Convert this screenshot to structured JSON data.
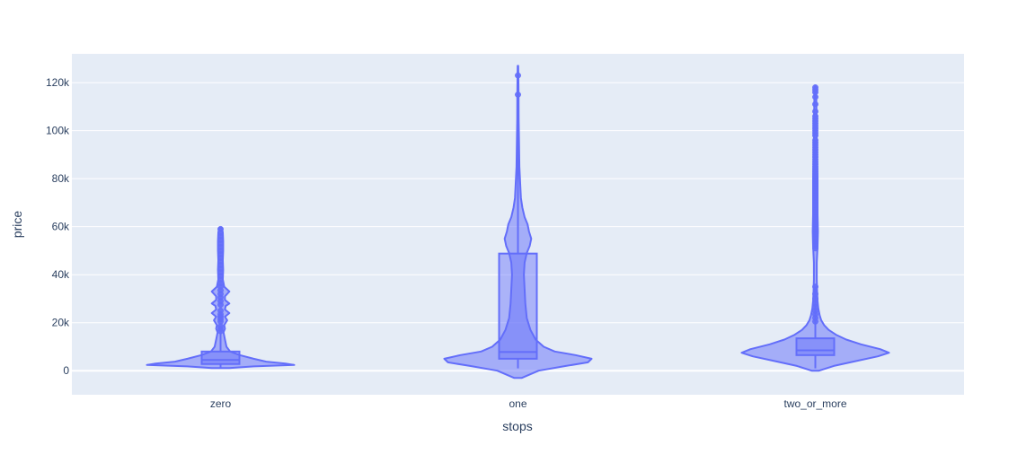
{
  "chart_data": {
    "type": "violin",
    "xlabel": "stops",
    "ylabel": "price",
    "categories": [
      "zero",
      "one",
      "two_or_more"
    ],
    "ylim": [
      -10000,
      132000
    ],
    "yticks": [
      0,
      20000,
      40000,
      60000,
      80000,
      100000,
      120000
    ],
    "ytick_labels": [
      "0",
      "20k",
      "40k",
      "60k",
      "80k",
      "100k",
      "120k"
    ],
    "grid": true,
    "colors": {
      "plot_bg": "#e5ecf6",
      "grid": "#ffffff",
      "series": "#636efa",
      "text": "#2a3f5f"
    },
    "violins": [
      {
        "category": "zero",
        "min": 1100,
        "max": 59500,
        "box": {
          "q1": 2800,
          "median": 4500,
          "q3": 8000,
          "whisker_low": 1100,
          "whisker_high": 16000
        },
        "density": [
          [
            1100,
            0.12
          ],
          [
            1800,
            0.45
          ],
          [
            2400,
            1.0
          ],
          [
            3000,
            0.88
          ],
          [
            3800,
            0.62
          ],
          [
            5000,
            0.45
          ],
          [
            6500,
            0.26
          ],
          [
            8000,
            0.13
          ],
          [
            10000,
            0.08
          ],
          [
            13000,
            0.06
          ],
          [
            16000,
            0.04
          ],
          [
            17500,
            0.06
          ],
          [
            19000,
            0.05
          ],
          [
            21000,
            0.09
          ],
          [
            22500,
            0.06
          ],
          [
            24000,
            0.12
          ],
          [
            25500,
            0.06
          ],
          [
            27000,
            0.07
          ],
          [
            28000,
            0.12
          ],
          [
            29500,
            0.06
          ],
          [
            31000,
            0.06
          ],
          [
            33000,
            0.12
          ],
          [
            35000,
            0.05
          ],
          [
            38000,
            0.03
          ],
          [
            42000,
            0.035
          ],
          [
            46000,
            0.03
          ],
          [
            50000,
            0.035
          ],
          [
            54000,
            0.035
          ],
          [
            57500,
            0.03
          ],
          [
            59500,
            0.02
          ]
        ],
        "outliers": [
          16500,
          17500,
          18500,
          20500,
          21500,
          22500,
          23500,
          25000,
          27500,
          29000,
          30500,
          32000,
          33500,
          35000,
          36500,
          38000,
          39500,
          41000,
          42500,
          44000,
          45500,
          47000,
          48500,
          50000,
          51500,
          53000,
          54500,
          56000,
          57500,
          59000
        ]
      },
      {
        "category": "one",
        "min": -3000,
        "max": 127000,
        "box": {
          "q1": 5000,
          "median": 7800,
          "q3": 48800,
          "whisker_low": 1000,
          "whisker_high": 110000
        },
        "density": [
          [
            -3000,
            0.05
          ],
          [
            0,
            0.28
          ],
          [
            2000,
            0.65
          ],
          [
            3500,
            0.95
          ],
          [
            5000,
            1.0
          ],
          [
            6500,
            0.78
          ],
          [
            8000,
            0.5
          ],
          [
            10000,
            0.35
          ],
          [
            13000,
            0.24
          ],
          [
            17000,
            0.17
          ],
          [
            22000,
            0.12
          ],
          [
            28000,
            0.1
          ],
          [
            34000,
            0.09
          ],
          [
            40000,
            0.08
          ],
          [
            45000,
            0.09
          ],
          [
            49000,
            0.12
          ],
          [
            52000,
            0.16
          ],
          [
            55000,
            0.18
          ],
          [
            58000,
            0.15
          ],
          [
            61000,
            0.13
          ],
          [
            64000,
            0.09
          ],
          [
            68000,
            0.06
          ],
          [
            72000,
            0.04
          ],
          [
            78000,
            0.03
          ],
          [
            85000,
            0.02
          ],
          [
            95000,
            0.015
          ],
          [
            105000,
            0.01
          ],
          [
            115000,
            0.008
          ],
          [
            122000,
            0.006
          ],
          [
            127000,
            0.004
          ]
        ],
        "outliers": [
          115000,
          123000
        ]
      },
      {
        "category": "two_or_more",
        "min": 0,
        "max": 118500,
        "box": {
          "q1": 6500,
          "median": 8500,
          "q3": 13500,
          "whisker_low": 1000,
          "whisker_high": 35000
        },
        "density": [
          [
            0,
            0.05
          ],
          [
            2000,
            0.25
          ],
          [
            4000,
            0.55
          ],
          [
            6000,
            0.85
          ],
          [
            7500,
            1.0
          ],
          [
            9000,
            0.88
          ],
          [
            11000,
            0.62
          ],
          [
            13000,
            0.42
          ],
          [
            15000,
            0.28
          ],
          [
            17000,
            0.18
          ],
          [
            19000,
            0.12
          ],
          [
            21000,
            0.08
          ],
          [
            23000,
            0.06
          ],
          [
            26000,
            0.04
          ],
          [
            29000,
            0.03
          ],
          [
            33000,
            0.025
          ],
          [
            38000,
            0.02
          ],
          [
            45000,
            0.02
          ],
          [
            52000,
            0.03
          ],
          [
            58000,
            0.035
          ],
          [
            65000,
            0.03
          ],
          [
            72000,
            0.03
          ],
          [
            80000,
            0.03
          ],
          [
            88000,
            0.025
          ],
          [
            95000,
            0.02
          ],
          [
            102000,
            0.02
          ],
          [
            110000,
            0.015
          ],
          [
            118500,
            0.01
          ]
        ],
        "outliers": [
          20500,
          22000,
          23500,
          25000,
          26500,
          28000,
          30000,
          32000,
          35000,
          51000,
          52000,
          53000,
          54000,
          55000,
          56000,
          57000,
          58000,
          59000,
          60000,
          61000,
          62000,
          63000,
          64000,
          65000,
          66000,
          67000,
          68000,
          69000,
          70000,
          71000,
          72000,
          73000,
          74000,
          75000,
          76000,
          77000,
          78000,
          79000,
          80000,
          81000,
          82000,
          83000,
          84000,
          85000,
          86000,
          87000,
          88000,
          89000,
          90000,
          91000,
          92000,
          93000,
          94000,
          95000,
          96000,
          98000,
          99000,
          100000,
          101000,
          102000,
          103000,
          104000,
          105000,
          106000,
          108000,
          111000,
          114000,
          116000,
          117000,
          118000
        ]
      }
    ]
  }
}
